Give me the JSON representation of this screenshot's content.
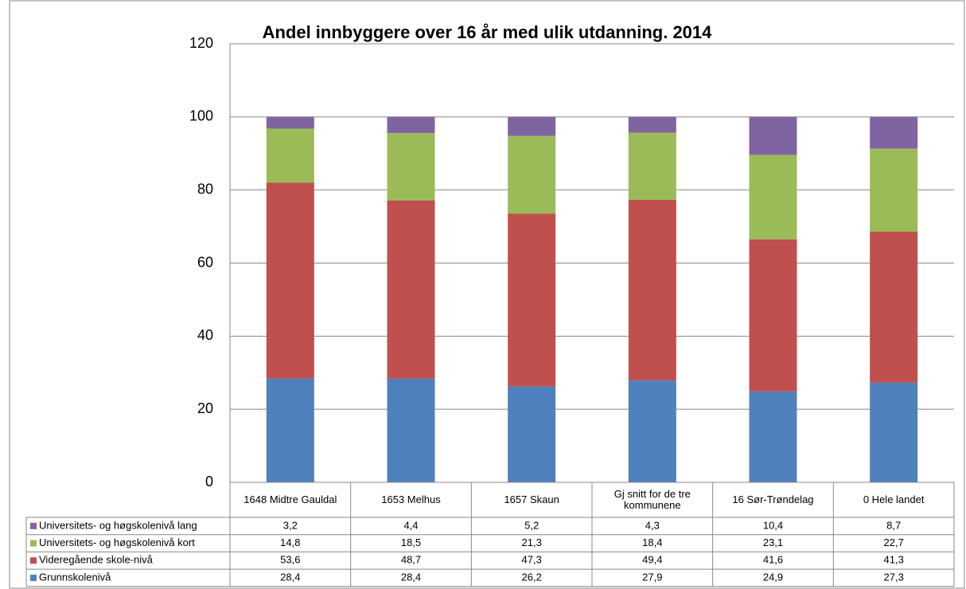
{
  "chart_data": {
    "type": "stacked_bar",
    "title": "Andel innbyggere over 16 år med ulik utdanning.  2014",
    "categories": [
      "1648 Midtre Gauldal",
      "1653 Melhus",
      "1657 Skaun",
      "Gj snitt for de tre kommunene",
      "16 Sør-Trøndelag",
      "0 Hele landet"
    ],
    "series": [
      {
        "name": "Grunnskolenivå",
        "color": "#4f81bd",
        "values": [
          28.4,
          28.4,
          26.2,
          27.9,
          24.9,
          27.3
        ],
        "value_labels": [
          "28,4",
          "28,4",
          "26,2",
          "27,9",
          "24,9",
          "27,3"
        ]
      },
      {
        "name": "Videregående skole-nivå",
        "color": "#c0504d",
        "values": [
          53.6,
          48.7,
          47.3,
          49.4,
          41.6,
          41.3
        ],
        "value_labels": [
          "53,6",
          "48,7",
          "47,3",
          "49,4",
          "41,6",
          "41,3"
        ]
      },
      {
        "name": "Universitets- og høgskolenivå kort",
        "color": "#9bbb59",
        "values": [
          14.8,
          18.5,
          21.3,
          18.4,
          23.1,
          22.7
        ],
        "value_labels": [
          "14,8",
          "18,5",
          "21,3",
          "18,4",
          "23,1",
          "22,7"
        ]
      },
      {
        "name": "Universitets- og høgskolenivå lang",
        "color": "#8064a2",
        "values": [
          3.2,
          4.4,
          5.2,
          4.3,
          10.4,
          8.7
        ],
        "value_labels": [
          "3,2",
          "4,4",
          "5,2",
          "4,3",
          "10,4",
          "8,7"
        ]
      }
    ],
    "ylim": [
      0,
      120
    ],
    "yticks": [
      0,
      20,
      40,
      60,
      80,
      100,
      120
    ],
    "grid": true
  }
}
